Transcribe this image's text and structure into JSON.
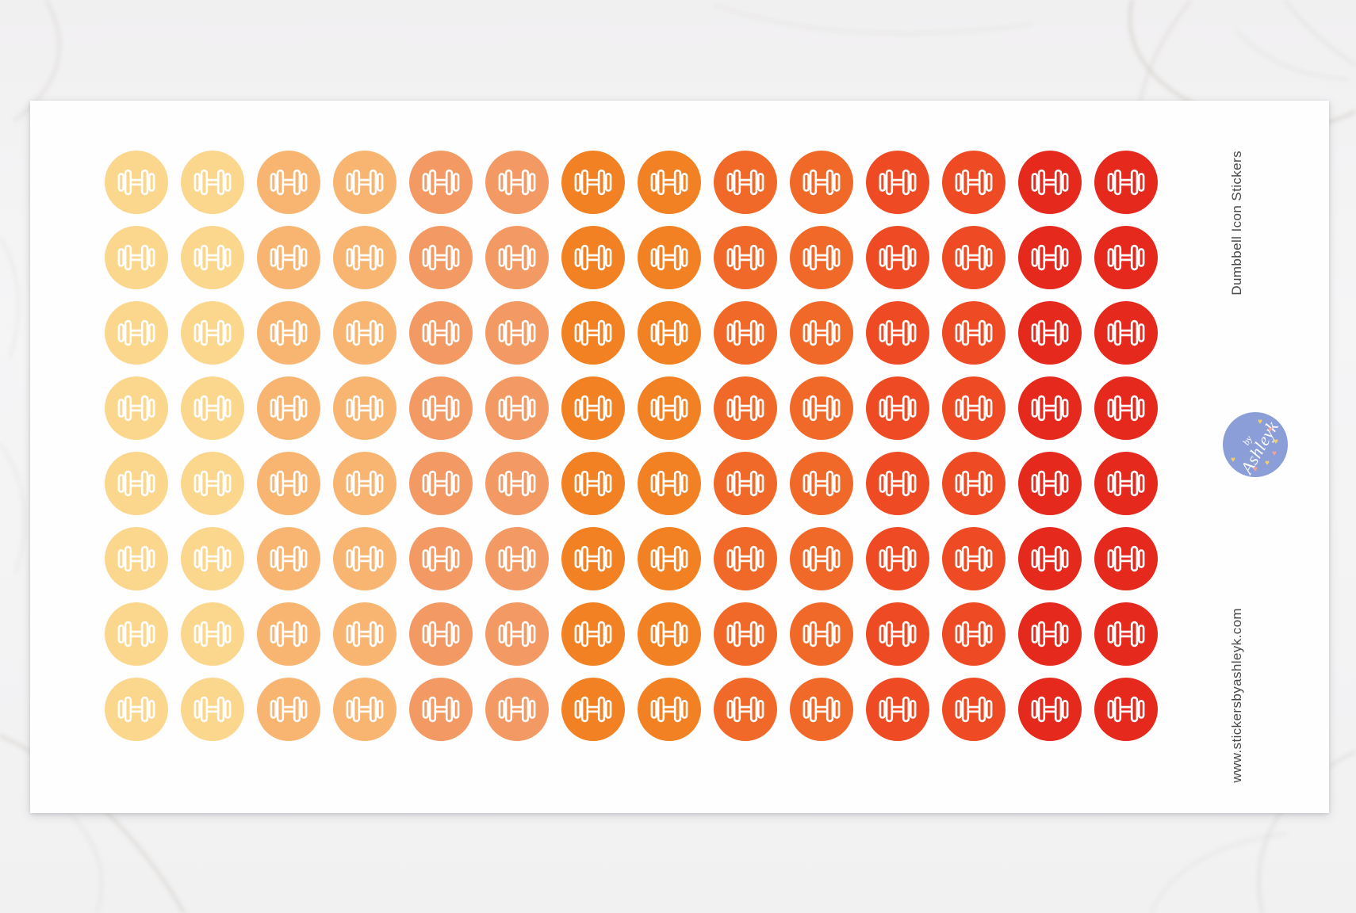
{
  "product": {
    "side_title": "Dumbbell Icon Stickers",
    "side_website": "www.stickersbyashleyk.com"
  },
  "logo": {
    "prefix": "by",
    "name": "Ashleyk",
    "bg_color": "#8C9ED7",
    "text_color": "#FFFFFF",
    "hearts": [
      {
        "color": "#F2CF6B"
      },
      {
        "color": "#F0A29C"
      },
      {
        "color": "#F2CF6B"
      },
      {
        "color": "#F0A29C"
      },
      {
        "color": "#F2CF6B"
      },
      {
        "color": "#F0A29C"
      },
      {
        "color": "#F2CF6B"
      }
    ]
  },
  "sticker_grid": {
    "rows": 8,
    "columns": 14,
    "icon": "dumbbell-icon",
    "icon_stroke_color": "#FFFFFF",
    "column_colors": [
      "#FAD78C",
      "#FAD78C",
      "#F7B571",
      "#F7B571",
      "#F39A64",
      "#F39A64",
      "#F18122",
      "#F18122",
      "#F16929",
      "#F16929",
      "#EE4B24",
      "#EE4B24",
      "#E5291D",
      "#E5291D"
    ]
  },
  "colors": {
    "sheet_background": "#FEFEFE",
    "side_text": "#4A4A4A",
    "marble_base": "#F2F2F3",
    "marble_vein": "#C9C3B9"
  }
}
